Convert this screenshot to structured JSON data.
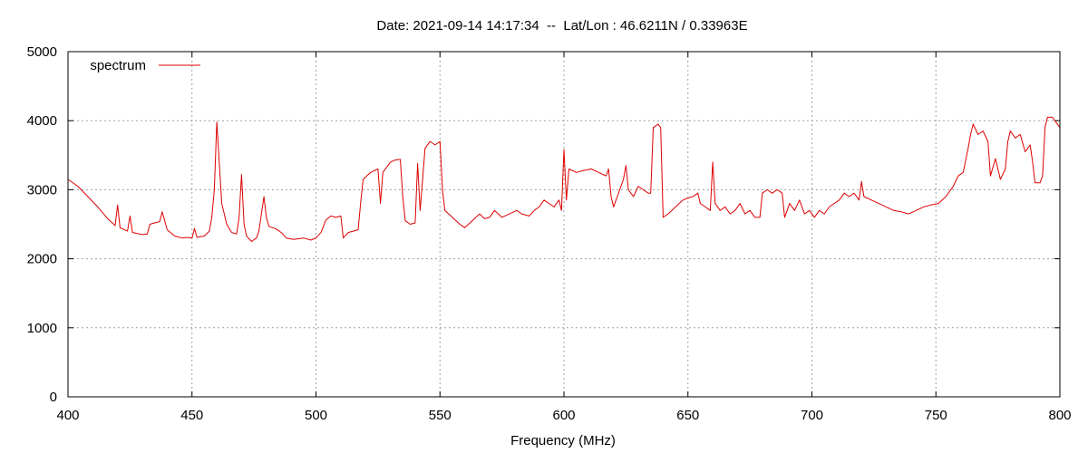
{
  "chart_data": {
    "type": "line",
    "title": "Date: 2021-09-14 14:17:34  --  Lat/Lon : 46.6211N / 0.33963E",
    "xlabel": "Frequency (MHz)",
    "ylabel": "",
    "xlim": [
      400,
      800
    ],
    "ylim": [
      0,
      5000
    ],
    "xticks": [
      400,
      450,
      500,
      550,
      600,
      650,
      700,
      750,
      800
    ],
    "yticks": [
      0,
      1000,
      2000,
      3000,
      4000,
      5000
    ],
    "grid": true,
    "legend": "top-left",
    "color": "#dd0000",
    "series": [
      {
        "name": "spectrum",
        "points": [
          [
            400,
            3150
          ],
          [
            404,
            3050
          ],
          [
            408,
            2900
          ],
          [
            412,
            2750
          ],
          [
            416,
            2580
          ],
          [
            419,
            2480
          ],
          [
            420,
            2780
          ],
          [
            421,
            2450
          ],
          [
            424,
            2400
          ],
          [
            425,
            2620
          ],
          [
            426,
            2380
          ],
          [
            430,
            2350
          ],
          [
            432,
            2360
          ],
          [
            433,
            2500
          ],
          [
            435,
            2520
          ],
          [
            437,
            2540
          ],
          [
            438,
            2680
          ],
          [
            439,
            2550
          ],
          [
            440,
            2420
          ],
          [
            443,
            2330
          ],
          [
            446,
            2300
          ],
          [
            448,
            2310
          ],
          [
            450,
            2300
          ],
          [
            451,
            2440
          ],
          [
            452,
            2310
          ],
          [
            455,
            2330
          ],
          [
            457,
            2400
          ],
          [
            458,
            2600
          ],
          [
            459,
            3000
          ],
          [
            460,
            3980
          ],
          [
            461,
            3400
          ],
          [
            462,
            2800
          ],
          [
            464,
            2500
          ],
          [
            466,
            2380
          ],
          [
            468,
            2360
          ],
          [
            469,
            2600
          ],
          [
            470,
            3220
          ],
          [
            471,
            2500
          ],
          [
            472,
            2330
          ],
          [
            474,
            2250
          ],
          [
            476,
            2300
          ],
          [
            477,
            2400
          ],
          [
            478,
            2650
          ],
          [
            479,
            2900
          ],
          [
            480,
            2600
          ],
          [
            481,
            2470
          ],
          [
            484,
            2430
          ],
          [
            486,
            2380
          ],
          [
            488,
            2300
          ],
          [
            491,
            2280
          ],
          [
            495,
            2300
          ],
          [
            498,
            2270
          ],
          [
            500,
            2300
          ],
          [
            502,
            2380
          ],
          [
            504,
            2560
          ],
          [
            506,
            2620
          ],
          [
            508,
            2600
          ],
          [
            510,
            2620
          ],
          [
            511,
            2300
          ],
          [
            513,
            2380
          ],
          [
            515,
            2400
          ],
          [
            517,
            2420
          ],
          [
            518,
            2800
          ],
          [
            519,
            3150
          ],
          [
            522,
            3250
          ],
          [
            525,
            3300
          ],
          [
            526,
            2800
          ],
          [
            527,
            3250
          ],
          [
            530,
            3400
          ],
          [
            532,
            3430
          ],
          [
            534,
            3440
          ],
          [
            535,
            2900
          ],
          [
            536,
            2550
          ],
          [
            538,
            2500
          ],
          [
            540,
            2520
          ],
          [
            541,
            3380
          ],
          [
            542,
            2700
          ],
          [
            544,
            3600
          ],
          [
            546,
            3700
          ],
          [
            548,
            3650
          ],
          [
            550,
            3700
          ],
          [
            551,
            3000
          ],
          [
            552,
            2700
          ],
          [
            555,
            2600
          ],
          [
            558,
            2500
          ],
          [
            560,
            2450
          ],
          [
            563,
            2550
          ],
          [
            566,
            2650
          ],
          [
            568,
            2580
          ],
          [
            570,
            2600
          ],
          [
            572,
            2700
          ],
          [
            575,
            2600
          ],
          [
            578,
            2650
          ],
          [
            581,
            2700
          ],
          [
            583,
            2650
          ],
          [
            586,
            2620
          ],
          [
            588,
            2700
          ],
          [
            590,
            2750
          ],
          [
            592,
            2850
          ],
          [
            594,
            2800
          ],
          [
            596,
            2750
          ],
          [
            598,
            2850
          ],
          [
            599,
            2700
          ],
          [
            600,
            3580
          ],
          [
            601,
            2850
          ],
          [
            602,
            3300
          ],
          [
            605,
            3250
          ],
          [
            608,
            3280
          ],
          [
            611,
            3300
          ],
          [
            614,
            3250
          ],
          [
            617,
            3200
          ],
          [
            618,
            3300
          ],
          [
            619,
            2900
          ],
          [
            620,
            2750
          ],
          [
            622,
            2950
          ],
          [
            624,
            3150
          ],
          [
            625,
            3350
          ],
          [
            626,
            3000
          ],
          [
            628,
            2900
          ],
          [
            630,
            3050
          ],
          [
            632,
            3000
          ],
          [
            634,
            2950
          ],
          [
            635,
            2950
          ],
          [
            636,
            3900
          ],
          [
            638,
            3950
          ],
          [
            639,
            3900
          ],
          [
            640,
            2600
          ],
          [
            642,
            2650
          ],
          [
            645,
            2750
          ],
          [
            648,
            2850
          ],
          [
            650,
            2880
          ],
          [
            652,
            2900
          ],
          [
            654,
            2950
          ],
          [
            655,
            2800
          ],
          [
            657,
            2750
          ],
          [
            659,
            2700
          ],
          [
            660,
            3400
          ],
          [
            661,
            2800
          ],
          [
            663,
            2700
          ],
          [
            665,
            2750
          ],
          [
            667,
            2650
          ],
          [
            669,
            2700
          ],
          [
            671,
            2800
          ],
          [
            673,
            2650
          ],
          [
            675,
            2700
          ],
          [
            677,
            2600
          ],
          [
            679,
            2600
          ],
          [
            680,
            2950
          ],
          [
            682,
            3000
          ],
          [
            684,
            2950
          ],
          [
            686,
            3000
          ],
          [
            688,
            2950
          ],
          [
            689,
            2600
          ],
          [
            691,
            2800
          ],
          [
            693,
            2700
          ],
          [
            695,
            2850
          ],
          [
            697,
            2650
          ],
          [
            699,
            2700
          ],
          [
            701,
            2600
          ],
          [
            703,
            2700
          ],
          [
            705,
            2650
          ],
          [
            707,
            2750
          ],
          [
            709,
            2800
          ],
          [
            711,
            2850
          ],
          [
            713,
            2950
          ],
          [
            715,
            2900
          ],
          [
            717,
            2950
          ],
          [
            719,
            2850
          ],
          [
            720,
            3120
          ],
          [
            721,
            2900
          ],
          [
            724,
            2850
          ],
          [
            727,
            2800
          ],
          [
            730,
            2750
          ],
          [
            733,
            2700
          ],
          [
            736,
            2680
          ],
          [
            739,
            2650
          ],
          [
            742,
            2700
          ],
          [
            745,
            2750
          ],
          [
            748,
            2780
          ],
          [
            751,
            2800
          ],
          [
            754,
            2900
          ],
          [
            757,
            3050
          ],
          [
            759,
            3200
          ],
          [
            761,
            3250
          ],
          [
            763,
            3600
          ],
          [
            764,
            3800
          ],
          [
            765,
            3950
          ],
          [
            767,
            3800
          ],
          [
            769,
            3850
          ],
          [
            771,
            3700
          ],
          [
            772,
            3200
          ],
          [
            774,
            3450
          ],
          [
            776,
            3150
          ],
          [
            778,
            3300
          ],
          [
            779,
            3700
          ],
          [
            780,
            3850
          ],
          [
            782,
            3750
          ],
          [
            784,
            3800
          ],
          [
            786,
            3550
          ],
          [
            788,
            3650
          ],
          [
            789,
            3400
          ],
          [
            790,
            3100
          ],
          [
            792,
            3100
          ],
          [
            793,
            3200
          ],
          [
            794,
            3900
          ],
          [
            795,
            4050
          ],
          [
            797,
            4050
          ],
          [
            798,
            4000
          ],
          [
            800,
            3900
          ]
        ]
      }
    ]
  }
}
